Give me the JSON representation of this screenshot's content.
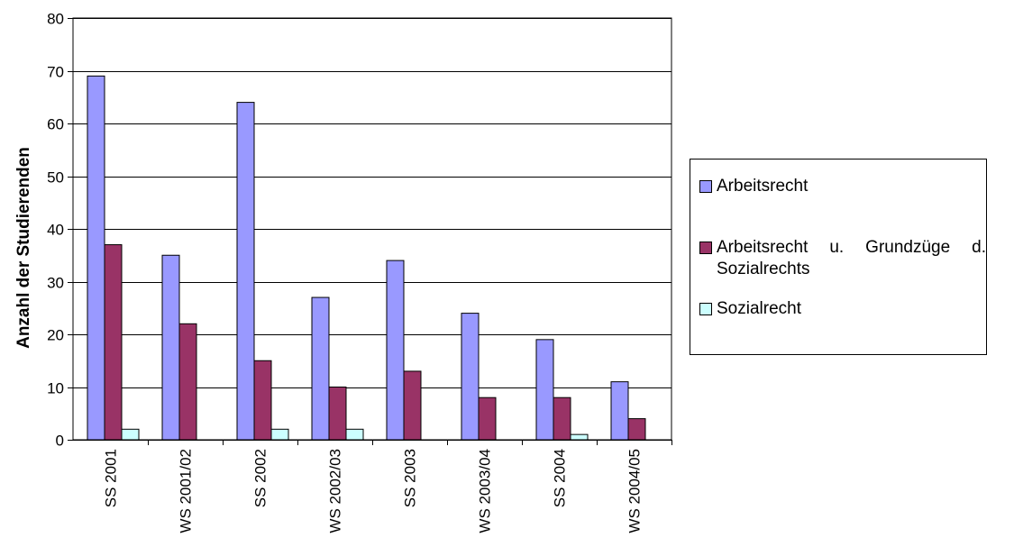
{
  "chart_data": {
    "type": "bar",
    "ylabel": "Anzahl der Studierenden",
    "xlabel": "",
    "ylim": [
      0,
      80
    ],
    "yticks": [
      0,
      10,
      20,
      30,
      40,
      50,
      60,
      70,
      80
    ],
    "grid": true,
    "legend_position": "right",
    "categories": [
      "SS 2001",
      "WS 2001/02",
      "SS 2002",
      "WS 2002/03",
      "SS 2003",
      "WS 2003/04",
      "SS 2004",
      "WS 2004/05"
    ],
    "series": [
      {
        "name": "Arbeitsrecht",
        "color": "#9999ff",
        "values": [
          69,
          35,
          64,
          27,
          34,
          24,
          19,
          11
        ]
      },
      {
        "name": "Arbeitsrecht u. Grundzüge d. Sozialrechts",
        "color": "#993366",
        "values": [
          37,
          22,
          15,
          10,
          13,
          8,
          8,
          4
        ]
      },
      {
        "name": "Sozialrecht",
        "color": "#ccffff",
        "values": [
          2,
          0,
          2,
          2,
          0,
          0,
          1,
          0
        ]
      }
    ]
  }
}
